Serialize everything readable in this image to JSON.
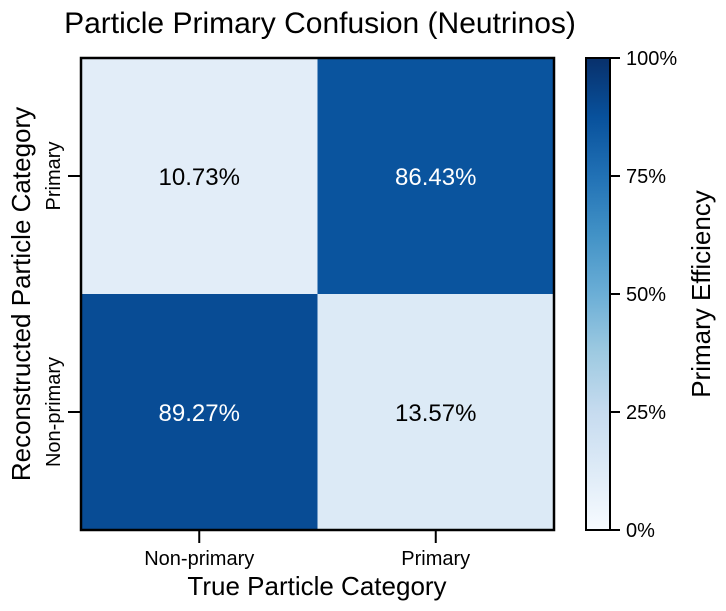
{
  "chart_data": {
    "type": "heatmap",
    "title": "Particle Primary Confusion (Neutrinos)",
    "xlabel": "True Particle Category",
    "ylabel": "Reconstructed Particle Category",
    "x_categories": [
      "Non-primary",
      "Primary"
    ],
    "y_categories": [
      "Primary",
      "Non-primary"
    ],
    "cells": [
      {
        "x": "Non-primary",
        "y": "Primary",
        "value": 10.73,
        "label": "10.73%"
      },
      {
        "x": "Primary",
        "y": "Primary",
        "value": 86.43,
        "label": "86.43%"
      },
      {
        "x": "Non-primary",
        "y": "Non-primary",
        "value": 89.27,
        "label": "89.27%"
      },
      {
        "x": "Primary",
        "y": "Non-primary",
        "value": 13.57,
        "label": "13.57%"
      }
    ],
    "colorbar": {
      "label": "Primary Efficiency",
      "range": [
        0,
        100
      ],
      "ticks": [
        "0%",
        "25%",
        "50%",
        "75%",
        "100%"
      ],
      "colormap": "Blues"
    }
  }
}
